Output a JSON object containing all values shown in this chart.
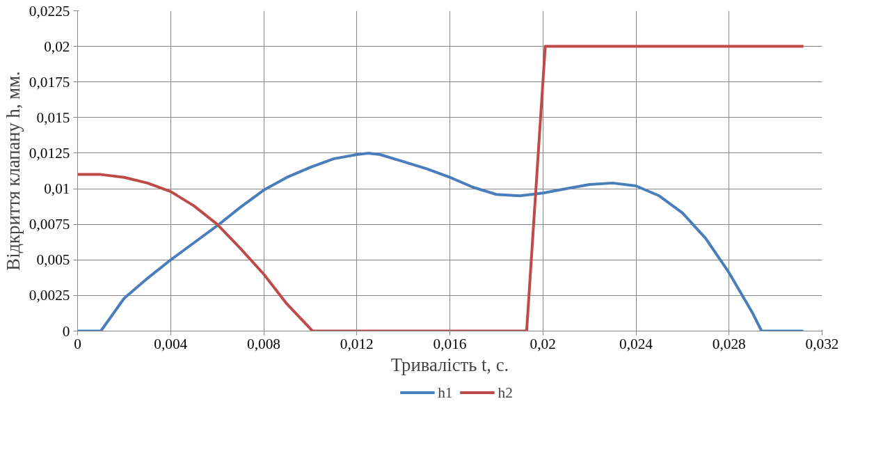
{
  "chart_data": {
    "type": "line",
    "xlabel": "Тривалість t, с.",
    "ylabel": "Відкриття клапану h, мм.",
    "xlim": [
      0,
      0.032
    ],
    "xticks": [
      {
        "value": 0,
        "label": "0"
      },
      {
        "value": 0.004,
        "label": "0,004"
      },
      {
        "value": 0.008,
        "label": "0,008"
      },
      {
        "value": 0.012,
        "label": "0,012"
      },
      {
        "value": 0.016,
        "label": "0,016"
      },
      {
        "value": 0.02,
        "label": "0,02"
      },
      {
        "value": 0.024,
        "label": "0,024"
      },
      {
        "value": 0.028,
        "label": "0,028"
      },
      {
        "value": 0.032,
        "label": "0,032"
      }
    ],
    "ylim": [
      0,
      0.0225
    ],
    "yticks": [
      {
        "value": 0,
        "label": "0"
      },
      {
        "value": 0.0025,
        "label": "0,0025"
      },
      {
        "value": 0.005,
        "label": "0,005"
      },
      {
        "value": 0.0075,
        "label": "0,0075"
      },
      {
        "value": 0.01,
        "label": "0,01"
      },
      {
        "value": 0.0125,
        "label": "0,0125"
      },
      {
        "value": 0.015,
        "label": "0,015"
      },
      {
        "value": 0.0175,
        "label": "0,0175"
      },
      {
        "value": 0.02,
        "label": "0,02"
      },
      {
        "value": 0.0225,
        "label": "0,0225"
      }
    ],
    "grid": true,
    "legend": "bottom",
    "marker": "none",
    "line_style": "solid",
    "series": [
      {
        "name": "h1",
        "color": "#4a7ebb",
        "x": [
          0,
          0.001,
          0.002,
          0.003,
          0.004,
          0.005,
          0.006,
          0.007,
          0.008,
          0.009,
          0.01,
          0.011,
          0.012,
          0.0125,
          0.013,
          0.014,
          0.015,
          0.016,
          0.017,
          0.018,
          0.019,
          0.02,
          0.021,
          0.022,
          0.023,
          0.024,
          0.025,
          0.026,
          0.027,
          0.028,
          0.029,
          0.0294,
          0.0312
        ],
        "values": [
          0,
          0,
          0.0023,
          0.0037,
          0.005,
          0.0062,
          0.0074,
          0.0087,
          0.0099,
          0.0108,
          0.0115,
          0.0121,
          0.0124,
          0.0125,
          0.0124,
          0.0119,
          0.0114,
          0.0108,
          0.0101,
          0.0096,
          0.0095,
          0.0097,
          0.01,
          0.0103,
          0.0104,
          0.0102,
          0.0095,
          0.0083,
          0.0065,
          0.0041,
          0.0013,
          0,
          0
        ]
      },
      {
        "name": "h2",
        "color": "#be4b48",
        "x": [
          0,
          0.001,
          0.002,
          0.003,
          0.004,
          0.005,
          0.006,
          0.007,
          0.008,
          0.009,
          0.0101,
          0.0193,
          0.0201,
          0.0312
        ],
        "values": [
          0.011,
          0.011,
          0.0108,
          0.0104,
          0.0098,
          0.0088,
          0.0075,
          0.0058,
          0.004,
          0.0019,
          0,
          0,
          0.02,
          0.02
        ]
      }
    ]
  }
}
